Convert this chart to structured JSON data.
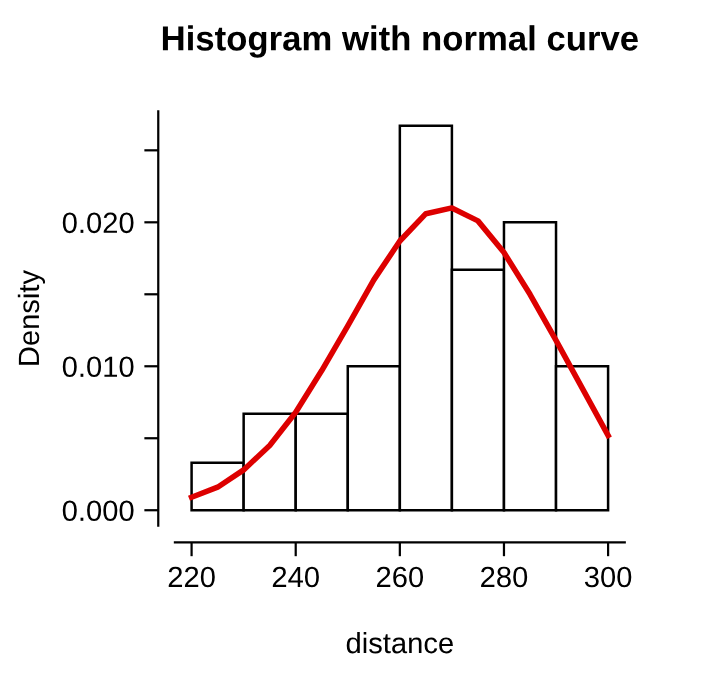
{
  "chart_data": [
    {
      "type": "histogram",
      "title": "Histogram with normal curve",
      "xlabel": "distance",
      "ylabel": "Density",
      "bins": [
        220,
        230,
        240,
        250,
        260,
        270,
        280,
        290,
        300
      ],
      "values": [
        0.0033,
        0.0067,
        0.0067,
        0.01,
        0.0267,
        0.0167,
        0.02,
        0.01
      ],
      "color": "#ffffff",
      "series": [
        {
          "type": "line",
          "color": "#dd0000",
          "x": [
            220,
            225,
            230,
            235,
            240,
            245,
            250,
            255,
            260,
            265,
            270,
            275,
            280,
            285,
            290,
            295,
            300
          ],
          "values": [
            0.0009,
            0.0016,
            0.0028,
            0.0045,
            0.0068,
            0.0097,
            0.0128,
            0.016,
            0.0187,
            0.0206,
            0.021,
            0.0201,
            0.0179,
            0.015,
            0.0118,
            0.0085,
            0.0052
          ]
        }
      ],
      "xlim": [
        216.8,
        303.2
      ],
      "ylim": [
        -0.00107,
        0.0277
      ],
      "xticks": [
        220,
        240,
        260,
        280,
        300
      ],
      "yticks": [
        {
          "value": 0,
          "label": "0.000"
        },
        {
          "value": 0.005,
          "label": null
        },
        {
          "value": 0.01,
          "label": "0.010"
        },
        {
          "value": 0.015,
          "label": null
        },
        {
          "value": 0.02,
          "label": "0.020"
        },
        {
          "value": 0.025,
          "label": null
        }
      ],
      "grid": false,
      "legend": false
    }
  ]
}
